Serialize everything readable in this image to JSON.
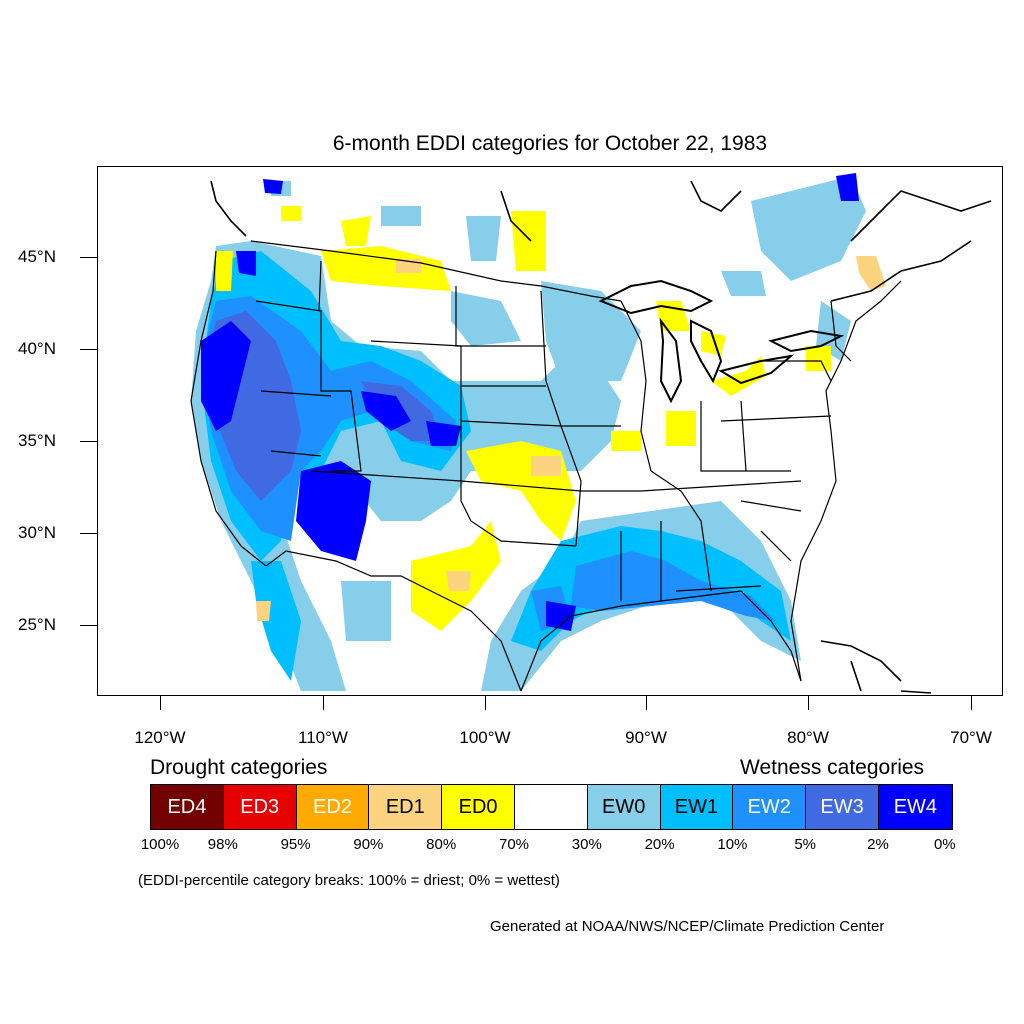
{
  "title": "6-month EDDI categories for October 22, 1983",
  "latitude_labels": [
    "45°N",
    "40°N",
    "35°N",
    "30°N",
    "25°N"
  ],
  "longitude_labels": [
    "120°W",
    "110°W",
    "100°W",
    "90°W",
    "80°W",
    "70°W"
  ],
  "legend": {
    "drought_heading": "Drought categories",
    "wetness_heading": "Wetness categories",
    "categories": [
      {
        "label": "ED4",
        "color": "#730000",
        "text_color": "#ffffff"
      },
      {
        "label": "ED3",
        "color": "#e60000",
        "text_color": "#ffffff"
      },
      {
        "label": "ED2",
        "color": "#ffaa00",
        "text_color": "#ffffff"
      },
      {
        "label": "ED1",
        "color": "#fcd37f",
        "text_color": "#000000"
      },
      {
        "label": "ED0",
        "color": "#ffff00",
        "text_color": "#000000"
      },
      {
        "label": "",
        "color": "#ffffff",
        "text_color": "#000000"
      },
      {
        "label": "EW0",
        "color": "#87ceeb",
        "text_color": "#000000"
      },
      {
        "label": "EW1",
        "color": "#00bfff",
        "text_color": "#000000"
      },
      {
        "label": "EW2",
        "color": "#1e90ff",
        "text_color": "#ffffff"
      },
      {
        "label": "EW3",
        "color": "#4169e1",
        "text_color": "#ffffff"
      },
      {
        "label": "EW4",
        "color": "#0000ff",
        "text_color": "#ffffff"
      }
    ],
    "percentile_breaks": [
      "100%",
      "98%",
      "95%",
      "90%",
      "80%",
      "70%",
      "30%",
      "20%",
      "10%",
      "5%",
      "2%",
      "0%"
    ]
  },
  "note": "(EDDI-percentile category breaks: 100% = driest; 0% = wettest)",
  "credit": "Generated at NOAA/NWS/NCEP/Climate Prediction Center"
}
